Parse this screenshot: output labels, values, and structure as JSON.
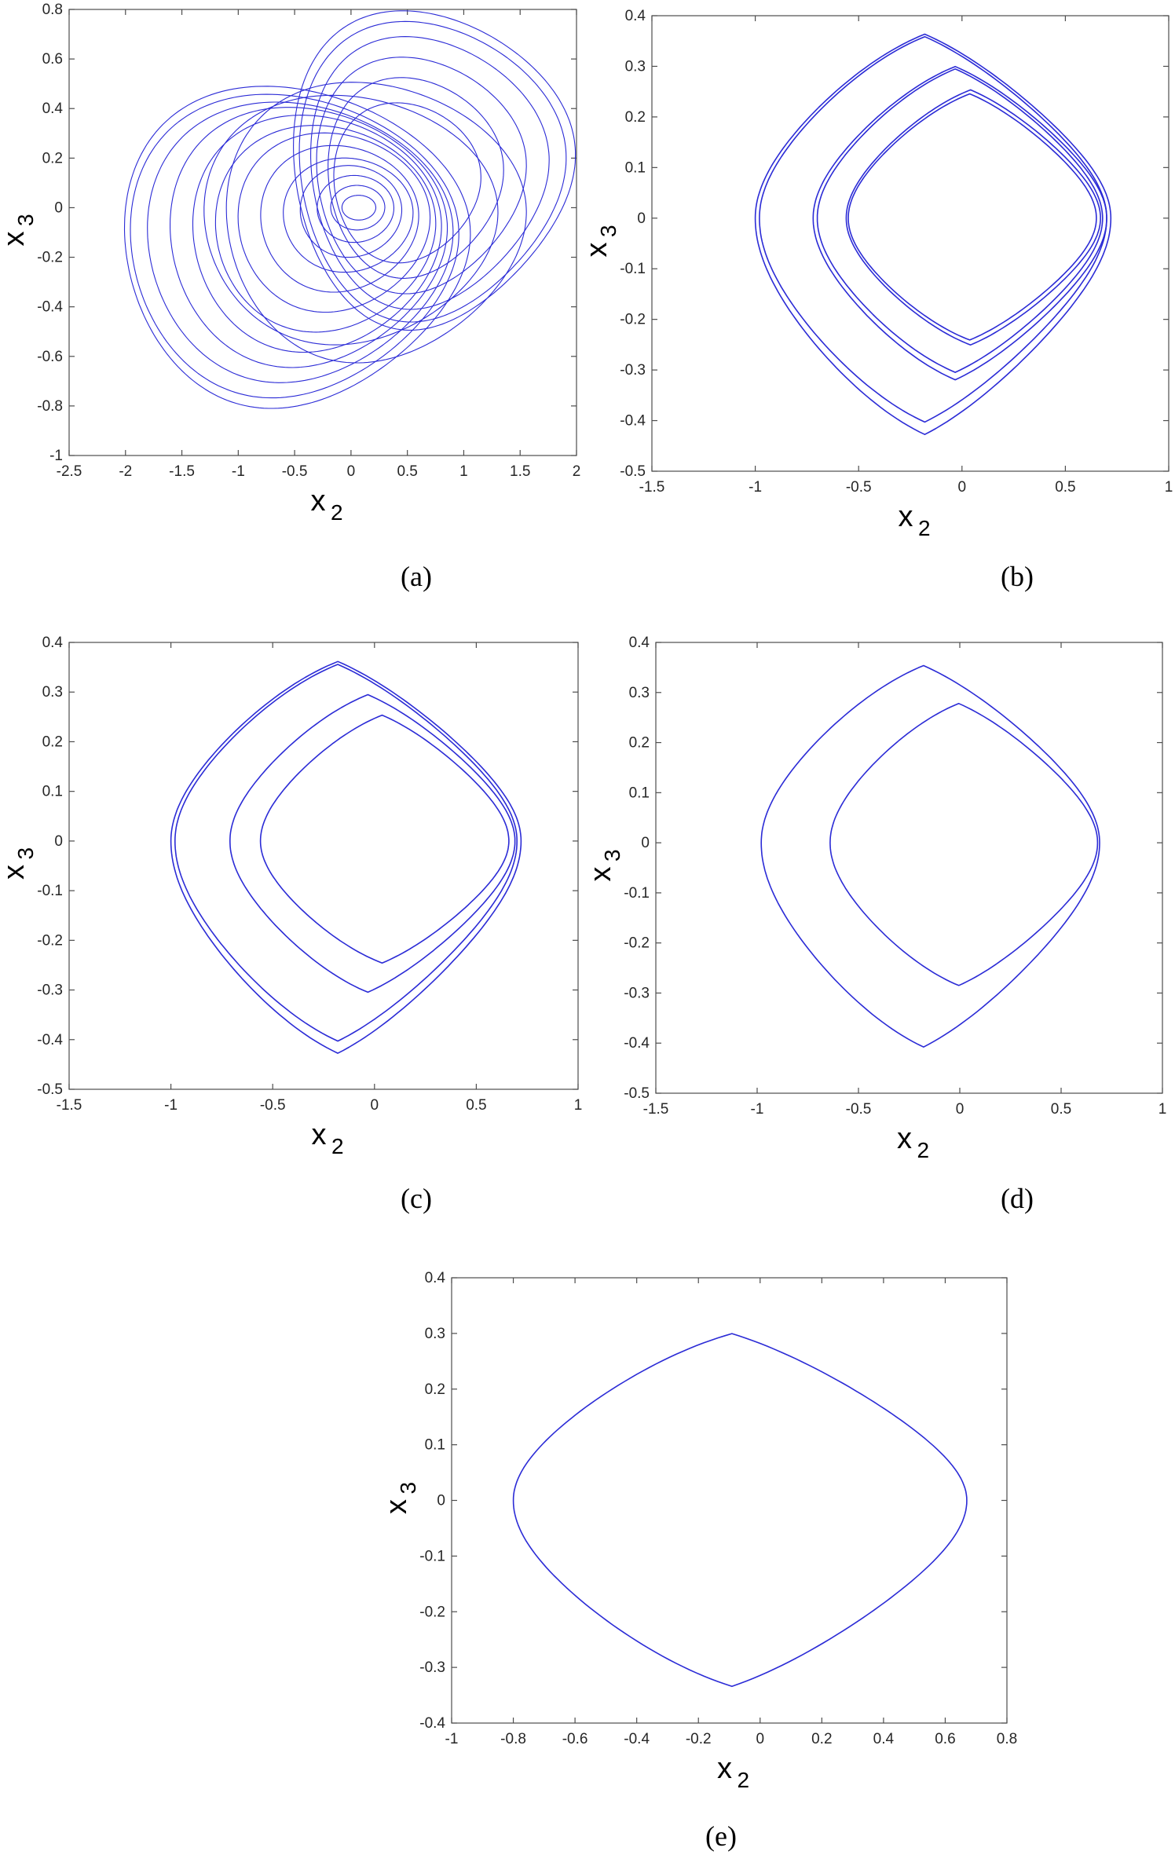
{
  "chart_data": [
    {
      "type": "line",
      "panel_label": "(a)",
      "xlabel": "x",
      "xlabel_sub": "2",
      "ylabel": "x",
      "ylabel_sub": "3",
      "xlim": [
        -2.5,
        2
      ],
      "ylim": [
        -1,
        0.8
      ],
      "xticks": [
        -2.5,
        -2,
        -1.5,
        -1,
        -0.5,
        0,
        0.5,
        1,
        1.5,
        2
      ],
      "xtick_labels": [
        "-2.5",
        "-2",
        "-1.5",
        "-1",
        "-0.5",
        "0",
        "0.5",
        "1",
        "1.5",
        "2"
      ],
      "yticks": [
        -1,
        -0.8,
        -0.6,
        -0.4,
        -0.2,
        0,
        0.2,
        0.4,
        0.6,
        0.8
      ],
      "ytick_labels": [
        "-1",
        "-0.8",
        "-0.6",
        "-0.4",
        "-0.2",
        "0",
        "0.2",
        "0.4",
        "0.6",
        "0.8"
      ],
      "color": "#2b2bd6",
      "description_kind": "chaotic attractor",
      "loops": [
        {
          "cx": 0.05,
          "xmin": -2.0,
          "xmax": 1.05,
          "ymin": -0.8,
          "ymax": 0.48,
          "skew": 0.18
        },
        {
          "cx": 0.1,
          "xmin": -1.95,
          "xmax": 0.95,
          "ymin": -0.76,
          "ymax": 0.45,
          "skew": 0.16
        },
        {
          "cx": 0.0,
          "xmin": -1.8,
          "xmax": 0.9,
          "ymin": -0.7,
          "ymax": 0.42,
          "skew": 0.15
        },
        {
          "cx": 0.0,
          "xmin": -1.6,
          "xmax": 0.85,
          "ymin": -0.64,
          "ymax": 0.4,
          "skew": 0.14
        },
        {
          "cx": 0.0,
          "xmin": -1.4,
          "xmax": 0.8,
          "ymin": -0.58,
          "ymax": 0.37,
          "skew": 0.12
        },
        {
          "cx": 0.0,
          "xmin": -1.2,
          "xmax": 0.75,
          "ymin": -0.5,
          "ymax": 0.33,
          "skew": 0.1
        },
        {
          "cx": 0.0,
          "xmin": -1.0,
          "xmax": 0.7,
          "ymin": -0.42,
          "ymax": 0.3,
          "skew": 0.1
        },
        {
          "cx": 0.0,
          "xmin": -0.8,
          "xmax": 0.6,
          "ymin": -0.34,
          "ymax": 0.25,
          "skew": 0.08
        },
        {
          "cx": 0.0,
          "xmin": -0.6,
          "xmax": 0.55,
          "ymin": -0.26,
          "ymax": 0.2,
          "skew": 0.06
        },
        {
          "cx": 0.0,
          "xmin": -0.45,
          "xmax": 0.45,
          "ymin": -0.2,
          "ymax": 0.17,
          "skew": 0.05
        },
        {
          "cx": 0.0,
          "xmin": -0.3,
          "xmax": 0.38,
          "ymin": -0.14,
          "ymax": 0.13,
          "skew": 0.04
        },
        {
          "cx": 0.0,
          "xmin": -0.18,
          "xmax": 0.3,
          "ymin": -0.09,
          "ymax": 0.09,
          "skew": 0.03
        },
        {
          "cx": 0.0,
          "xmin": -0.08,
          "xmax": 0.22,
          "ymin": -0.05,
          "ymax": 0.05,
          "skew": 0.02
        },
        {
          "cx": 0.3,
          "xmin": -0.5,
          "xmax": 1.98,
          "ymin": -0.48,
          "ymax": 0.78,
          "skew": 0.22
        },
        {
          "cx": 0.3,
          "xmin": -0.45,
          "xmax": 1.9,
          "ymin": -0.45,
          "ymax": 0.74,
          "skew": 0.2
        },
        {
          "cx": 0.3,
          "xmin": -0.35,
          "xmax": 1.75,
          "ymin": -0.4,
          "ymax": 0.68,
          "skew": 0.2
        },
        {
          "cx": 0.3,
          "xmin": -0.3,
          "xmax": 1.55,
          "ymin": -0.34,
          "ymax": 0.6,
          "skew": 0.18
        },
        {
          "cx": 0.3,
          "xmin": -0.2,
          "xmax": 1.35,
          "ymin": -0.28,
          "ymax": 0.52,
          "skew": 0.16
        },
        {
          "cx": 0.3,
          "xmin": -0.15,
          "xmax": 1.15,
          "ymin": -0.22,
          "ymax": 0.42,
          "skew": 0.14
        },
        {
          "cx": 0.2,
          "xmin": -1.1,
          "xmax": 1.55,
          "ymin": -0.62,
          "ymax": 0.5,
          "skew": 0.15
        },
        {
          "cx": 0.1,
          "xmin": -1.3,
          "xmax": 1.3,
          "ymin": -0.55,
          "ymax": 0.45,
          "skew": 0.12
        }
      ]
    },
    {
      "type": "line",
      "panel_label": "(b)",
      "xlabel": "x",
      "xlabel_sub": "2",
      "ylabel": "x",
      "ylabel_sub": "3",
      "xlim": [
        -1.5,
        1
      ],
      "ylim": [
        -0.5,
        0.4
      ],
      "xticks": [
        -1.5,
        -1,
        -0.5,
        0,
        0.5,
        1
      ],
      "xtick_labels": [
        "-1.5",
        "-1",
        "-0.5",
        "0",
        "0.5",
        "1"
      ],
      "yticks": [
        -0.5,
        -0.4,
        -0.3,
        -0.2,
        -0.1,
        0,
        0.1,
        0.2,
        0.3,
        0.4
      ],
      "ytick_labels": [
        "-0.5",
        "-0.4",
        "-0.3",
        "-0.2",
        "-0.1",
        "0",
        "0.1",
        "0.2",
        "0.3",
        "0.4"
      ],
      "color": "#2b2bd6",
      "description_kind": "period-4 orbit",
      "loops": [
        {
          "xmin": -1.0,
          "xmax": 0.72,
          "ymin": -0.435,
          "ymax": 0.37,
          "peak": -0.3
        },
        {
          "xmin": -0.98,
          "xmax": 0.7,
          "ymin": -0.41,
          "ymax": 0.365,
          "peak": -0.3
        },
        {
          "xmin": -0.72,
          "xmax": 0.7,
          "ymin": -0.325,
          "ymax": 0.305,
          "peak": -0.1
        },
        {
          "xmin": -0.7,
          "xmax": 0.68,
          "ymin": -0.31,
          "ymax": 0.3,
          "peak": -0.1
        },
        {
          "xmin": -0.56,
          "xmax": 0.67,
          "ymin": -0.255,
          "ymax": 0.258,
          "peak": 0.0
        },
        {
          "xmin": -0.55,
          "xmax": 0.65,
          "ymin": -0.245,
          "ymax": 0.25,
          "peak": 0.0
        }
      ]
    },
    {
      "type": "line",
      "panel_label": "(c)",
      "xlabel": "x",
      "xlabel_sub": "2",
      "ylabel": "x",
      "ylabel_sub": "3",
      "xlim": [
        -1.5,
        1
      ],
      "ylim": [
        -0.5,
        0.4
      ],
      "xticks": [
        -1.5,
        -1,
        -0.5,
        0,
        0.5,
        1
      ],
      "xtick_labels": [
        "-1.5",
        "-1",
        "-0.5",
        "0",
        "0.5",
        "1"
      ],
      "yticks": [
        -0.5,
        -0.4,
        -0.3,
        -0.2,
        -0.1,
        0,
        0.1,
        0.2,
        0.3,
        0.4
      ],
      "ytick_labels": [
        "-0.5",
        "-0.4",
        "-0.3",
        "-0.2",
        "-0.1",
        "0",
        "0.1",
        "0.2",
        "0.3",
        "0.4"
      ],
      "color": "#2b2bd6",
      "description_kind": "period-3 orbit",
      "loops": [
        {
          "xmin": -1.0,
          "xmax": 0.72,
          "ymin": -0.435,
          "ymax": 0.368,
          "peak": -0.3
        },
        {
          "xmin": -0.98,
          "xmax": 0.7,
          "ymin": -0.41,
          "ymax": 0.362,
          "peak": -0.3
        },
        {
          "xmin": -0.71,
          "xmax": 0.69,
          "ymin": -0.31,
          "ymax": 0.3,
          "peak": -0.1
        },
        {
          "xmin": -0.56,
          "xmax": 0.66,
          "ymin": -0.25,
          "ymax": 0.258,
          "peak": 0.0
        }
      ]
    },
    {
      "type": "line",
      "panel_label": "(d)",
      "xlabel": "x",
      "xlabel_sub": "2",
      "ylabel": "x",
      "ylabel_sub": "3",
      "xlim": [
        -1.5,
        1
      ],
      "ylim": [
        -0.5,
        0.4
      ],
      "xticks": [
        -1.5,
        -1,
        -0.5,
        0,
        0.5,
        1
      ],
      "xtick_labels": [
        "-1.5",
        "-1",
        "-0.5",
        "0",
        "0.5",
        "1"
      ],
      "yticks": [
        -0.5,
        -0.4,
        -0.3,
        -0.2,
        -0.1,
        0,
        0.1,
        0.2,
        0.3,
        0.4
      ],
      "ytick_labels": [
        "-0.5",
        "-0.4",
        "-0.3",
        "-0.2",
        "-0.1",
        "0",
        "0.1",
        "0.2",
        "0.3",
        "0.4"
      ],
      "color": "#2b2bd6",
      "description_kind": "period-2 orbit",
      "loops": [
        {
          "xmin": -0.98,
          "xmax": 0.69,
          "ymin": -0.415,
          "ymax": 0.36,
          "peak": -0.28
        },
        {
          "xmin": -0.64,
          "xmax": 0.68,
          "ymin": -0.29,
          "ymax": 0.283,
          "peak": -0.08
        }
      ]
    },
    {
      "type": "line",
      "panel_label": "(e)",
      "xlabel": "x",
      "xlabel_sub": "2",
      "ylabel": "x",
      "ylabel_sub": "3",
      "xlim": [
        -1,
        0.8
      ],
      "ylim": [
        -0.4,
        0.4
      ],
      "xticks": [
        -1,
        -0.8,
        -0.6,
        -0.4,
        -0.2,
        0,
        0.2,
        0.4,
        0.6,
        0.8
      ],
      "xtick_labels": [
        "-1",
        "-0.8",
        "-0.6",
        "-0.4",
        "-0.2",
        "0",
        "0.2",
        "0.4",
        "0.6",
        "0.8"
      ],
      "yticks": [
        -0.4,
        -0.3,
        -0.2,
        -0.1,
        0,
        0.1,
        0.2,
        0.3,
        0.4
      ],
      "ytick_labels": [
        "-0.4",
        "-0.3",
        "-0.2",
        "-0.1",
        "0",
        "0.1",
        "0.2",
        "0.3",
        "0.4"
      ],
      "color": "#2b2bd6",
      "description_kind": "period-1 orbit",
      "loops": [
        {
          "xmin": -0.8,
          "xmax": 0.67,
          "ymin": -0.34,
          "ymax": 0.305,
          "peak": -0.17
        }
      ]
    }
  ]
}
